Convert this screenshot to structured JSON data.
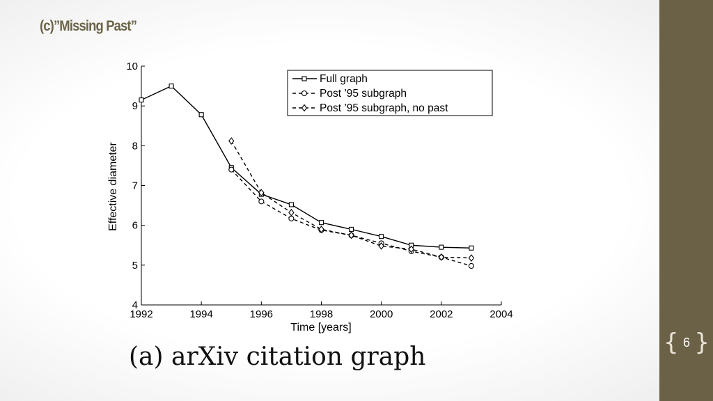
{
  "slide": {
    "title": "(c)”Missing Past”",
    "page_number": "6",
    "caption": "(a) arXiv citation graph"
  },
  "chart_data": {
    "type": "line",
    "title": "",
    "xlabel": "Time [years]",
    "ylabel": "Effective diameter",
    "xlim": [
      1992,
      2004
    ],
    "ylim": [
      4,
      10
    ],
    "xticks": [
      1992,
      1994,
      1996,
      1998,
      2000,
      2002,
      2004
    ],
    "yticks": [
      4,
      5,
      6,
      7,
      8,
      9,
      10
    ],
    "legend_position": "top-right",
    "series": [
      {
        "name": "Full graph",
        "line": "solid",
        "marker": "square",
        "x": [
          1992,
          1993,
          1994,
          1995,
          1996,
          1997,
          1998,
          1999,
          2000,
          2001,
          2002,
          2003
        ],
        "y": [
          9.15,
          9.5,
          8.78,
          7.45,
          6.78,
          6.52,
          6.07,
          5.9,
          5.72,
          5.5,
          5.45,
          5.43
        ]
      },
      {
        "name": "Post ’95 subgraph",
        "line": "dashed",
        "marker": "circle",
        "x": [
          1995,
          1996,
          1997,
          1998,
          1999,
          2000,
          2001,
          2002,
          2003
        ],
        "y": [
          7.4,
          6.6,
          6.17,
          5.88,
          5.75,
          5.55,
          5.35,
          5.2,
          4.98
        ]
      },
      {
        "name": "Post ’95 subgraph, no past",
        "line": "dashed",
        "marker": "diamond",
        "x": [
          1995,
          1996,
          1997,
          1998,
          1999,
          2000,
          2001,
          2002,
          2003
        ],
        "y": [
          8.12,
          6.82,
          6.32,
          5.9,
          5.75,
          5.48,
          5.4,
          5.2,
          5.18
        ]
      }
    ]
  }
}
